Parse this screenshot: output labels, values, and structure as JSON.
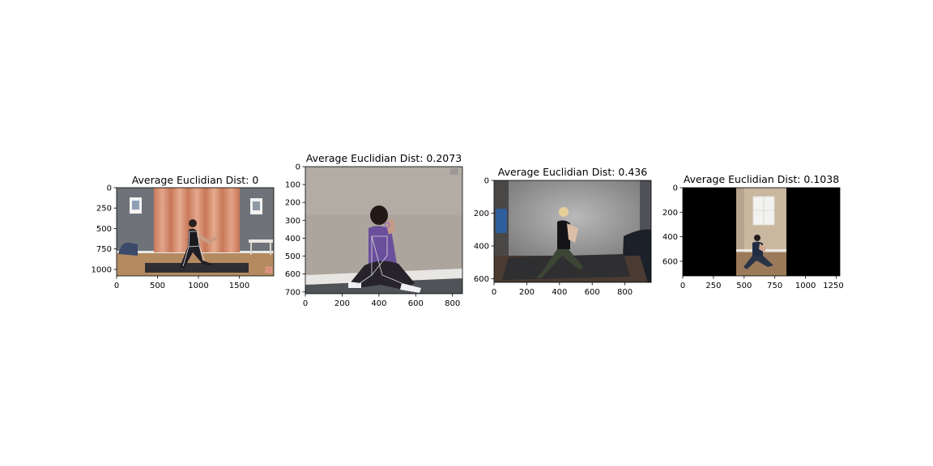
{
  "panels": [
    {
      "title": "Average Euclidian Dist: 0",
      "xticks": [
        "0",
        "500",
        "1000",
        "1500"
      ],
      "yticks": [
        "0",
        "250",
        "500",
        "750",
        "1000"
      ],
      "xlim": [
        0,
        1920
      ],
      "ylim": [
        1080,
        0
      ],
      "xtick_values": [
        0,
        500,
        1000,
        1500
      ],
      "ytick_values": [
        0,
        250,
        500,
        750,
        1000
      ]
    },
    {
      "title": "Average Euclidian Dist: 0.2073",
      "xticks": [
        "0",
        "200",
        "400",
        "600",
        "800"
      ],
      "yticks": [
        "0",
        "100",
        "200",
        "300",
        "400",
        "500",
        "600",
        "700"
      ],
      "xlim": [
        0,
        854
      ],
      "ylim": [
        710,
        0
      ],
      "xtick_values": [
        0,
        200,
        400,
        600,
        800
      ],
      "ytick_values": [
        0,
        100,
        200,
        300,
        400,
        500,
        600,
        700
      ]
    },
    {
      "title": "Average Euclidian Dist: 0.436",
      "xticks": [
        "0",
        "200",
        "400",
        "600",
        "800"
      ],
      "yticks": [
        "0",
        "200",
        "400",
        "600"
      ],
      "xlim": [
        0,
        960
      ],
      "ylim": [
        620,
        0
      ],
      "xtick_values": [
        0,
        200,
        400,
        600,
        800
      ],
      "ytick_values": [
        0,
        200,
        400,
        600
      ]
    },
    {
      "title": "Average Euclidian Dist: 0.1038",
      "xticks": [
        "0",
        "250",
        "500",
        "750",
        "1000",
        "1250"
      ],
      "yticks": [
        "0",
        "200",
        "400",
        "600"
      ],
      "xlim": [
        0,
        1280
      ],
      "ylim": [
        720,
        0
      ],
      "xtick_values": [
        0,
        250,
        500,
        750,
        1000,
        1250
      ],
      "ytick_values": [
        0,
        200,
        400,
        600
      ]
    }
  ]
}
